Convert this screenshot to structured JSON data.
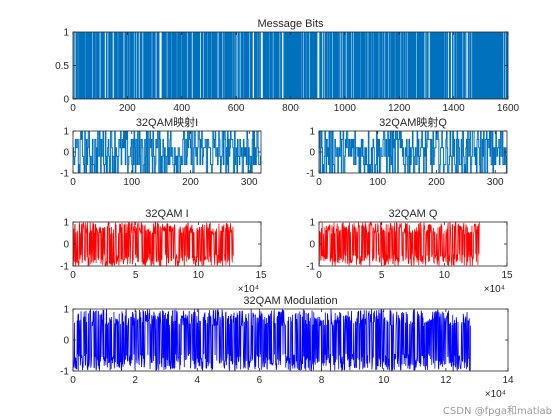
{
  "watermark": "CSDN @fpga和matlab",
  "chart_data": [
    {
      "id": "message_bits",
      "type": "bar",
      "title": "Message Bits",
      "xlabel": "",
      "ylabel": "",
      "xlim": [
        0,
        1600
      ],
      "ylim": [
        0,
        1
      ],
      "xticks": [
        0,
        200,
        400,
        600,
        800,
        1000,
        1200,
        1400,
        1600
      ],
      "yticks": [
        0,
        0.5,
        1
      ],
      "x_exponent": "",
      "color": "#0072BD",
      "samples": 1600,
      "values_description_range": [
        0,
        1
      ]
    },
    {
      "id": "qam_i_map",
      "type": "line",
      "title": "32QAM映射I",
      "xlabel": "",
      "ylabel": "",
      "xlim": [
        0,
        320
      ],
      "ylim": [
        -1,
        1
      ],
      "xticks": [
        0,
        100,
        200,
        300
      ],
      "yticks": [
        -1,
        0,
        1
      ],
      "x_exponent": "",
      "color": "#0072BD",
      "samples": 320,
      "levels": [
        -1,
        -0.6,
        -0.2,
        0.2,
        0.6,
        1
      ]
    },
    {
      "id": "qam_q_map",
      "type": "line",
      "title": "32QAM映射Q",
      "xlabel": "",
      "ylabel": "",
      "xlim": [
        0,
        320
      ],
      "ylim": [
        -1,
        1
      ],
      "xticks": [
        0,
        100,
        200,
        300
      ],
      "yticks": [
        -1,
        0,
        1
      ],
      "x_exponent": "",
      "color": "#0072BD",
      "samples": 320,
      "levels": [
        -1,
        -0.6,
        -0.2,
        0.2,
        0.6,
        1
      ]
    },
    {
      "id": "qam_i",
      "type": "line",
      "title": "32QAM I",
      "xlabel": "",
      "ylabel": "",
      "xlim": [
        0,
        15
      ],
      "ylim": [
        -1,
        1
      ],
      "xticks": [
        0,
        5,
        10,
        15
      ],
      "yticks": [
        -1,
        0,
        1
      ],
      "x_exponent": "×10⁴",
      "color": "#FF0000",
      "data_extent_x": 12.8
    },
    {
      "id": "qam_q",
      "type": "line",
      "title": "32QAM Q",
      "xlabel": "",
      "ylabel": "",
      "xlim": [
        0,
        15
      ],
      "ylim": [
        -1,
        1
      ],
      "xticks": [
        0,
        5,
        10,
        15
      ],
      "yticks": [
        -1,
        0,
        1
      ],
      "x_exponent": "×10⁴",
      "color": "#FF0000",
      "data_extent_x": 12.8
    },
    {
      "id": "qam_mod",
      "type": "line",
      "title": "32QAM Modulation",
      "xlabel": "",
      "ylabel": "",
      "xlim": [
        0,
        14
      ],
      "ylim": [
        -1,
        1
      ],
      "xticks": [
        0,
        2,
        4,
        6,
        8,
        10,
        12,
        14
      ],
      "yticks": [
        -1,
        0,
        1
      ],
      "x_exponent": "×10⁴",
      "color": "#0000FF",
      "data_extent_x": 12.8
    }
  ]
}
